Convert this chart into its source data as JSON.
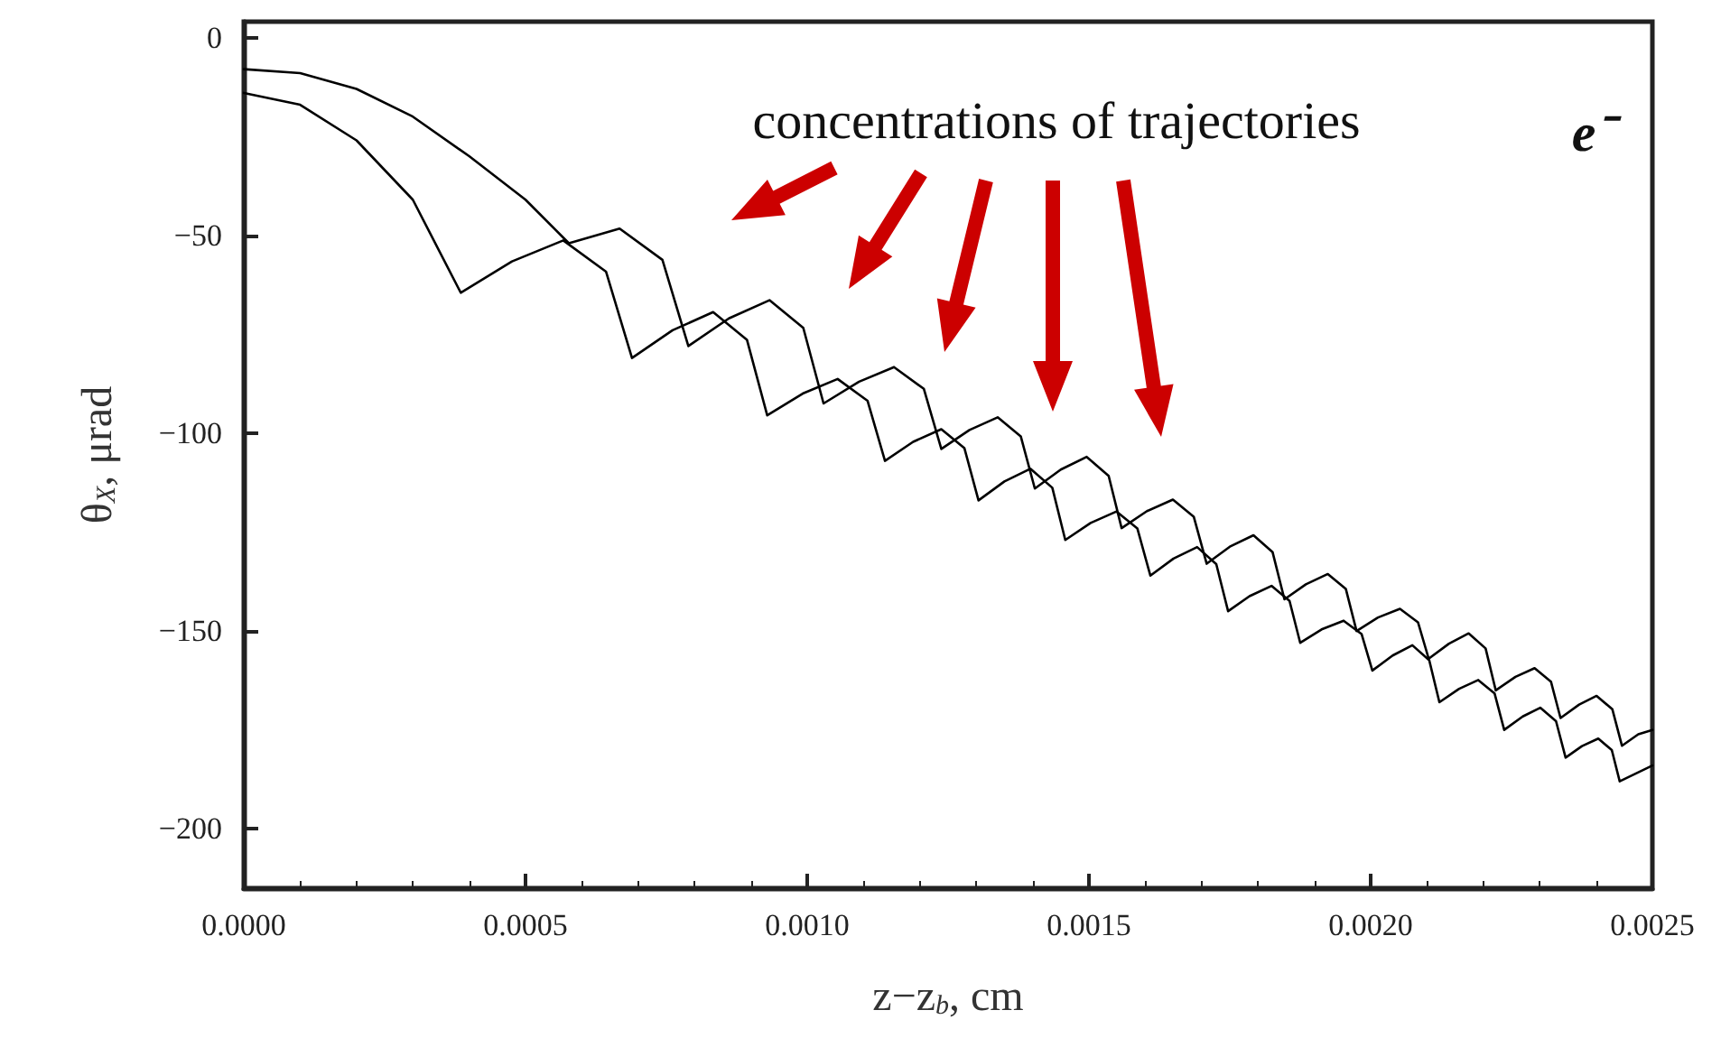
{
  "chart_data": {
    "type": "line",
    "xlabel": "z−z$_{b}$, cm",
    "ylabel": "θ$_{X}$, μrad",
    "annotations": [
      "concentrations of trajectories",
      "e⁻"
    ],
    "xlim": [
      0,
      0.0025
    ],
    "ylim": [
      -215,
      4
    ],
    "xticks": [
      {
        "value": 0,
        "label": "0.0000"
      },
      {
        "value": 0.0005,
        "label": "0.0005"
      },
      {
        "value": 0.001,
        "label": "0.0010"
      },
      {
        "value": 0.0015,
        "label": "0.0015"
      },
      {
        "value": 0.002,
        "label": "0.0020"
      },
      {
        "value": 0.0025,
        "label": "0.0025"
      }
    ],
    "yticks": [
      -200,
      -150,
      -100,
      -50,
      0
    ],
    "grid": false,
    "marker": "none",
    "line_style": "solid",
    "series": [
      {
        "color": "#000000",
        "x": [
          0,
          0.0001,
          0.0002,
          0.0003,
          0.000385,
          0.000476,
          0.000567,
          0.000643,
          0.000689,
          0.000761,
          0.000833,
          0.000893,
          0.000929,
          0.000992,
          0.001054,
          0.001107,
          0.001138,
          0.001188,
          0.001238,
          0.001279,
          0.001304,
          0.00135,
          0.001396,
          0.001435,
          0.001458,
          0.001503,
          0.001549,
          0.001586,
          0.001609,
          0.00165,
          0.001692,
          0.001726,
          0.001747,
          0.001785,
          0.001824,
          0.001856,
          0.001875,
          0.001913,
          0.001952,
          0.001984,
          0.002003,
          0.002039,
          0.002074,
          0.002104,
          0.002122,
          0.002157,
          0.002191,
          0.00222,
          0.002237,
          0.00227,
          0.002301,
          0.002329,
          0.002346,
          0.002375,
          0.002404,
          0.002428,
          0.002442,
          0.0025
        ],
        "values": [
          -14,
          -17,
          -26,
          -41,
          -64.5,
          -56.6,
          -51.3,
          -59.2,
          -81,
          -74,
          -69.4,
          -76.4,
          -95.5,
          -90,
          -86.3,
          -91.8,
          -107,
          -102.2,
          -99,
          -103.8,
          -117,
          -112.2,
          -109,
          -113.8,
          -127,
          -122.7,
          -119.8,
          -124.1,
          -136,
          -131.7,
          -128.8,
          -133.1,
          -145,
          -141.2,
          -138.6,
          -142.4,
          -153,
          -149.6,
          -147.4,
          -150.8,
          -160,
          -156.2,
          -153.6,
          -157.4,
          -168,
          -164.6,
          -162.4,
          -165.8,
          -175,
          -171.6,
          -169.4,
          -172.8,
          -182,
          -179.1,
          -177.2,
          -180.1,
          -188,
          -184
        ]
      },
      {
        "color": "#000000",
        "x": [
          0,
          0.0001,
          0.0002,
          0.0003,
          0.0004,
          0.0005,
          0.000577,
          0.000667,
          0.000743,
          0.000789,
          0.000861,
          0.000933,
          0.000993,
          0.001029,
          0.001092,
          0.001154,
          0.001207,
          0.001238,
          0.001288,
          0.001338,
          0.001379,
          0.001404,
          0.00145,
          0.001496,
          0.001535,
          0.001558,
          0.001603,
          0.001649,
          0.001686,
          0.001709,
          0.00175,
          0.001792,
          0.001826,
          0.001847,
          0.001885,
          0.001924,
          0.001956,
          0.001975,
          0.002013,
          0.002052,
          0.002084,
          0.002103,
          0.002139,
          0.002174,
          0.002204,
          0.002222,
          0.002257,
          0.002291,
          0.00232,
          0.002337,
          0.00237,
          0.002401,
          0.002429,
          0.002446,
          0.002475,
          0.0025
        ],
        "values": [
          -8,
          -9,
          -13,
          -20,
          -30,
          -41,
          -52,
          -48.3,
          -56.2,
          -78,
          -71,
          -66.4,
          -73.4,
          -92.5,
          -87,
          -83.3,
          -88.8,
          -104,
          -99.2,
          -96,
          -100.8,
          -114,
          -109.2,
          -106,
          -110.8,
          -124,
          -119.7,
          -116.8,
          -121.1,
          -133,
          -128.7,
          -125.8,
          -130.1,
          -142,
          -138.2,
          -135.6,
          -139.4,
          -150,
          -146.6,
          -144.4,
          -147.8,
          -157,
          -153.2,
          -150.6,
          -154.4,
          -165,
          -161.6,
          -159.4,
          -162.8,
          -172,
          -168.6,
          -166.4,
          -169.8,
          -179,
          -176.1,
          -175
        ]
      }
    ]
  }
}
